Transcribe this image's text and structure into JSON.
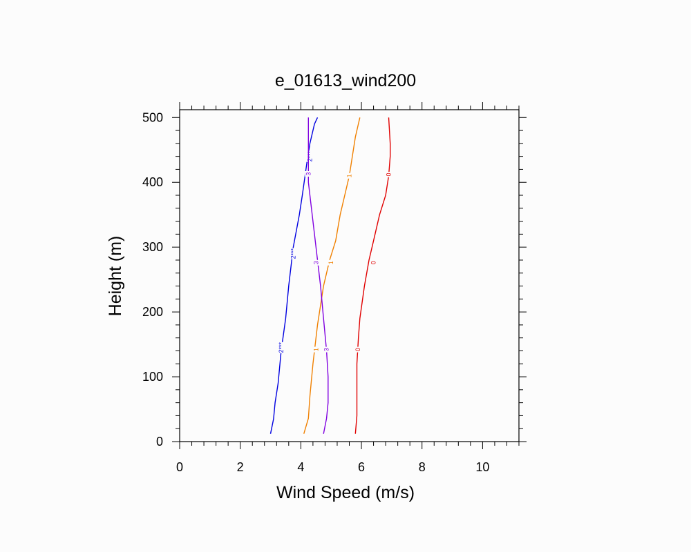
{
  "chart_data": {
    "type": "line",
    "title": "e_01613_wind200",
    "xlabel": "Wind Speed (m/s)",
    "ylabel": "Height (m)",
    "xlim": [
      0,
      11.2
    ],
    "ylim": [
      0,
      512
    ],
    "x_ticks": [
      "0",
      "2",
      "4",
      "6",
      "8",
      "10"
    ],
    "y_ticks": [
      "0",
      "100",
      "200",
      "300",
      "400",
      "500"
    ],
    "grid": false,
    "series": [
      {
        "line_label": "0",
        "color": "#e00000",
        "points": [
          [
            5.8,
            12
          ],
          [
            5.85,
            40
          ],
          [
            5.85,
            80
          ],
          [
            5.85,
            120
          ],
          [
            5.9,
            160
          ],
          [
            5.95,
            190
          ],
          [
            6.1,
            240
          ],
          [
            6.25,
            280
          ],
          [
            6.4,
            310
          ],
          [
            6.6,
            350
          ],
          [
            6.8,
            380
          ],
          [
            6.9,
            410
          ],
          [
            6.95,
            440
          ],
          [
            6.95,
            460
          ],
          [
            6.9,
            500
          ]
        ],
        "label_at": [
          [
            5.88,
            142
          ],
          [
            6.4,
            276
          ],
          [
            6.9,
            412
          ]
        ]
      },
      {
        "line_label": "1",
        "color": "#f08000",
        "points": [
          [
            4.1,
            12
          ],
          [
            4.25,
            36
          ],
          [
            4.3,
            70
          ],
          [
            4.4,
            120
          ],
          [
            4.55,
            180
          ],
          [
            4.75,
            240
          ],
          [
            4.95,
            280
          ],
          [
            5.15,
            310
          ],
          [
            5.3,
            350
          ],
          [
            5.5,
            390
          ],
          [
            5.6,
            410
          ],
          [
            5.7,
            440
          ],
          [
            5.8,
            470
          ],
          [
            5.95,
            500
          ]
        ],
        "label_at": [
          [
            4.5,
            142
          ],
          [
            5.0,
            276
          ],
          [
            5.6,
            410
          ]
        ]
      },
      {
        "line_label": "2***",
        "color": "#0000e0",
        "points": [
          [
            3.0,
            12
          ],
          [
            3.1,
            35
          ],
          [
            3.15,
            60
          ],
          [
            3.25,
            90
          ],
          [
            3.35,
            140
          ],
          [
            3.5,
            190
          ],
          [
            3.6,
            240
          ],
          [
            3.75,
            300
          ],
          [
            3.95,
            350
          ],
          [
            4.05,
            380
          ],
          [
            4.2,
            430
          ],
          [
            4.3,
            460
          ],
          [
            4.45,
            490
          ],
          [
            4.55,
            500
          ]
        ],
        "label_at": [
          [
            3.35,
            145
          ],
          [
            3.75,
            290
          ],
          [
            4.3,
            440
          ]
        ]
      },
      {
        "line_label": "3",
        "color": "#8000e0",
        "points": [
          [
            4.75,
            12
          ],
          [
            4.85,
            36
          ],
          [
            4.9,
            60
          ],
          [
            4.9,
            100
          ],
          [
            4.85,
            140
          ],
          [
            4.75,
            190
          ],
          [
            4.65,
            240
          ],
          [
            4.55,
            280
          ],
          [
            4.45,
            320
          ],
          [
            4.35,
            360
          ],
          [
            4.25,
            400
          ],
          [
            4.25,
            440
          ],
          [
            4.25,
            480
          ],
          [
            4.25,
            500
          ]
        ],
        "label_at": [
          [
            4.85,
            142
          ],
          [
            4.5,
            276
          ],
          [
            4.25,
            413
          ]
        ]
      }
    ]
  }
}
